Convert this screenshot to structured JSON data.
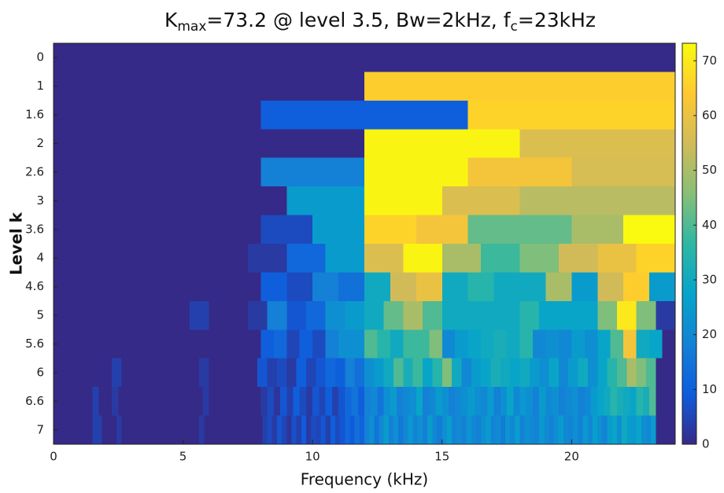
{
  "chart_data": {
    "type": "heatmap",
    "title_parts": [
      "K",
      "max",
      "=73.2 @ level 3.5, Bw=2kHz, f",
      "c",
      "=23kHz"
    ],
    "xlabel": "Frequency (kHz)",
    "ylabel": "Level k",
    "xlim": [
      0,
      24
    ],
    "xticks": [
      0,
      5,
      10,
      15,
      20
    ],
    "levels": [
      0,
      1,
      1.6,
      2,
      2.6,
      3,
      3.6,
      4,
      4.6,
      5,
      5.6,
      6,
      6.6,
      7
    ],
    "colormap": "parula",
    "clim": [
      0,
      73.2
    ],
    "cticks": [
      0,
      10,
      20,
      30,
      40,
      50,
      60,
      70
    ],
    "rows": [
      [
        0
      ],
      [
        0,
        65
      ],
      [
        0,
        10,
        66
      ],
      [
        0,
        0,
        72,
        57
      ],
      [
        0,
        0,
        18,
        72,
        62,
        56
      ],
      [
        0,
        0,
        0,
        25,
        72,
        57,
        52,
        52
      ],
      [
        0,
        0,
        0,
        0,
        6,
        25,
        66,
        62,
        42,
        42,
        50,
        73
      ],
      [
        0,
        0,
        0,
        0,
        0,
        3,
        12,
        25,
        57,
        72,
        50,
        38,
        45,
        55,
        60,
        66
      ],
      [
        0,
        0,
        0,
        0,
        0,
        0,
        0,
        0,
        10,
        6,
        18,
        14,
        30,
        55,
        60,
        30,
        35,
        30,
        30,
        50,
        25,
        55,
        65,
        25
      ],
      [
        0,
        0,
        0,
        0,
        0,
        0,
        0,
        4,
        0,
        0,
        3,
        18,
        8,
        12,
        22,
        25,
        30,
        42,
        50,
        40,
        30,
        30,
        30,
        30,
        35,
        28,
        28,
        28,
        45,
        70,
        45,
        3
      ],
      [
        0,
        0,
        0,
        0,
        0,
        0,
        0,
        0,
        0,
        0,
        0,
        0,
        0,
        0,
        0,
        0,
        10,
        12,
        5,
        10,
        6,
        18,
        22,
        22,
        40,
        35,
        30,
        38,
        38,
        45,
        20,
        25,
        28,
        30,
        32,
        30,
        35,
        20,
        22,
        20,
        25,
        22,
        28,
        40,
        62,
        30,
        28,
        0
      ],
      [
        0,
        0,
        0,
        0,
        0,
        0,
        4,
        0,
        0,
        0,
        0,
        0,
        0,
        0,
        0,
        3,
        0,
        0,
        0,
        0,
        0,
        8,
        4,
        6,
        3,
        10,
        5,
        8,
        12,
        10,
        18,
        14,
        22,
        25,
        30,
        40,
        32,
        38,
        28,
        35,
        45,
        30,
        20,
        25,
        28,
        32,
        30,
        28,
        30,
        25,
        22,
        28,
        20,
        25,
        30,
        22,
        28,
        35,
        40,
        50,
        45,
        40,
        0,
        0
      ],
      [
        0,
        0,
        0,
        0,
        0,
        0,
        4,
        0,
        0,
        3,
        0,
        0,
        0,
        0,
        0,
        0,
        0,
        0,
        0,
        0,
        0,
        0,
        0,
        3,
        0,
        0,
        0,
        0,
        0,
        0,
        0,
        0,
        3,
        6,
        2,
        8,
        4,
        10,
        6,
        3,
        8,
        5,
        10,
        4,
        8,
        12,
        15,
        10,
        18,
        20,
        15,
        22,
        25,
        18,
        20,
        22,
        28,
        18,
        20,
        25,
        22,
        18,
        20,
        22,
        25,
        22,
        20,
        25,
        18,
        22,
        28,
        20,
        24,
        22,
        18,
        25,
        20,
        22,
        18,
        20,
        22,
        18,
        20,
        25,
        28,
        30,
        35,
        32,
        30,
        28,
        35,
        32,
        40,
        0,
        0,
        0
      ],
      [
        0,
        0,
        0,
        0,
        0,
        0,
        0,
        0,
        4,
        4,
        0,
        0,
        0,
        3,
        0,
        0,
        0,
        0,
        0,
        0,
        0,
        0,
        0,
        0,
        0,
        0,
        0,
        0,
        0,
        0,
        3,
        0,
        0,
        0,
        0,
        0,
        0,
        0,
        0,
        0,
        0,
        0,
        0,
        4,
        6,
        3,
        8,
        5,
        2,
        7,
        4,
        9,
        3,
        6,
        5,
        8,
        4,
        10,
        6,
        8,
        12,
        9,
        14,
        11,
        18,
        22,
        15,
        20,
        25,
        18,
        22,
        16,
        20,
        24,
        19,
        22,
        18,
        25,
        20,
        17,
        22,
        26,
        19,
        21,
        18,
        23,
        20,
        18,
        22,
        25,
        19,
        21,
        17,
        23,
        20,
        26,
        18,
        22,
        20,
        19,
        24,
        21,
        18,
        22,
        25,
        20,
        19,
        22,
        18,
        24,
        20,
        26,
        22,
        19,
        25,
        28,
        22,
        30,
        26,
        24,
        28,
        22,
        20,
        25,
        0,
        0,
        0,
        0
      ]
    ]
  }
}
